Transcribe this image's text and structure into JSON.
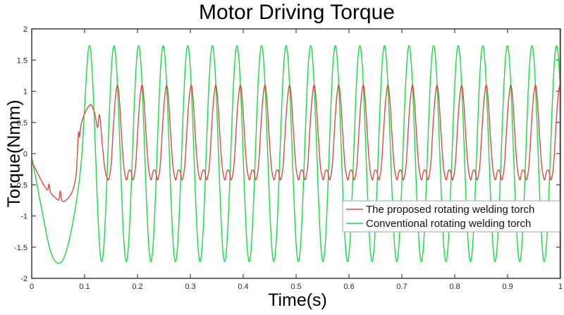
{
  "chart_data": {
    "type": "line",
    "title": "Motor Driving Torque",
    "xlabel": "Time(s)",
    "ylabel": "Torque(Nmm)",
    "xlim": [
      0,
      1
    ],
    "ylim": [
      -2,
      2
    ],
    "grid": false,
    "box": true,
    "tick_direction": "in",
    "xticks": {
      "values": [
        0,
        0.1,
        0.2,
        0.3,
        0.4,
        0.5,
        0.6,
        0.7,
        0.8,
        0.9,
        1
      ],
      "labels": [
        "0",
        "0.1",
        "0.2",
        "0.3",
        "0.4",
        "0.5",
        "0.6",
        "0.7",
        "0.8",
        "0.9",
        "1"
      ]
    },
    "yticks": {
      "values": [
        -2,
        -1.5,
        -1,
        -0.5,
        0,
        0.5,
        1,
        1.5,
        2
      ],
      "labels": [
        "-2",
        "-1.5",
        "-1",
        "-0.5",
        "0",
        "0.5",
        "1",
        "1.5",
        "2"
      ]
    },
    "legend": {
      "position": "lower-right"
    },
    "series": [
      {
        "name": "The proposed rotating welding torch",
        "color": "#e64740",
        "description": "starts near -0.1, dips to about -0.75 with small spikes, humps to 0.78 near t=0.11, then steady oscillation between about +1.1 and -0.42 with dimpled troughs, period 0.0465 s",
        "transient_points": [
          [
            0,
            -0.12
          ],
          [
            0.012,
            -0.33
          ],
          [
            0.024,
            -0.52
          ],
          [
            0.03,
            -0.58
          ],
          [
            0.0325,
            -0.49
          ],
          [
            0.036,
            -0.63
          ],
          [
            0.044,
            -0.7
          ],
          [
            0.051,
            -0.74
          ],
          [
            0.054,
            -0.6
          ],
          [
            0.0575,
            -0.76
          ],
          [
            0.067,
            -0.73
          ],
          [
            0.077,
            -0.6
          ],
          [
            0.0835,
            -0.37
          ],
          [
            0.086,
            -0.05
          ],
          [
            0.0885,
            0.34
          ],
          [
            0.0905,
            0.27
          ],
          [
            0.0935,
            0.47
          ],
          [
            0.101,
            0.66
          ],
          [
            0.108,
            0.76
          ],
          [
            0.1125,
            0.78
          ],
          [
            0.119,
            0.65
          ],
          [
            0.1245,
            0.42
          ],
          [
            0.1275,
            0.62
          ],
          [
            0.13,
            0.5
          ],
          [
            0.134,
            0.1
          ],
          [
            0.139,
            -0.28
          ],
          [
            0.1444,
            -0.42
          ]
        ],
        "steady": {
          "start": 0.1444,
          "period": 0.0465,
          "peak_time": 0.1156,
          "cycle_shape": [
            [
              0,
              1.1
            ],
            [
              0.08,
              0.86
            ],
            [
              0.16,
              0.34
            ],
            [
              0.25,
              -0.17
            ],
            [
              0.32,
              -0.36
            ],
            [
              0.38,
              -0.42
            ],
            [
              0.44,
              -0.3
            ],
            [
              0.5,
              -0.26
            ],
            [
              0.56,
              -0.3
            ],
            [
              0.62,
              -0.42
            ],
            [
              0.68,
              -0.36
            ],
            [
              0.75,
              -0.14
            ],
            [
              0.83,
              0.4
            ],
            [
              0.91,
              0.86
            ],
            [
              1,
              1.1
            ]
          ]
        },
        "end_spike": {
          "t": 0.9993,
          "top": 2,
          "bottom": -2
        }
      },
      {
        "name": "Conventional rotating welding torch",
        "color": "#0fe13c",
        "description": "single deep startup trough to -1.76 near t=0.05, then steady sine of amplitude 1.73 about 0, period 0.0465 s",
        "transient_points": [
          [
            0,
            -0.05
          ],
          [
            0.018,
            -0.85
          ],
          [
            0.035,
            -1.55
          ],
          [
            0.051,
            -1.76
          ],
          [
            0.066,
            -1.55
          ],
          [
            0.083,
            -0.85
          ],
          [
            0.094,
            -0.1
          ],
          [
            0.101,
            0.9
          ],
          [
            0.106,
            1.58
          ],
          [
            0.1091,
            1.73
          ]
        ],
        "steady": {
          "start": 0.1091,
          "period": 0.0465,
          "waveform": "sine",
          "amplitude": 1.73,
          "offset": 0,
          "zero_cross_up": 0.0975
        }
      }
    ],
    "colors": {
      "axis": "#3f3f3f",
      "tick_label": "#2b2b2b",
      "title": "#000000",
      "legend_border": "#a6a6a6",
      "legend_background": "#ffffff",
      "plot_background": "#ffffff"
    }
  }
}
